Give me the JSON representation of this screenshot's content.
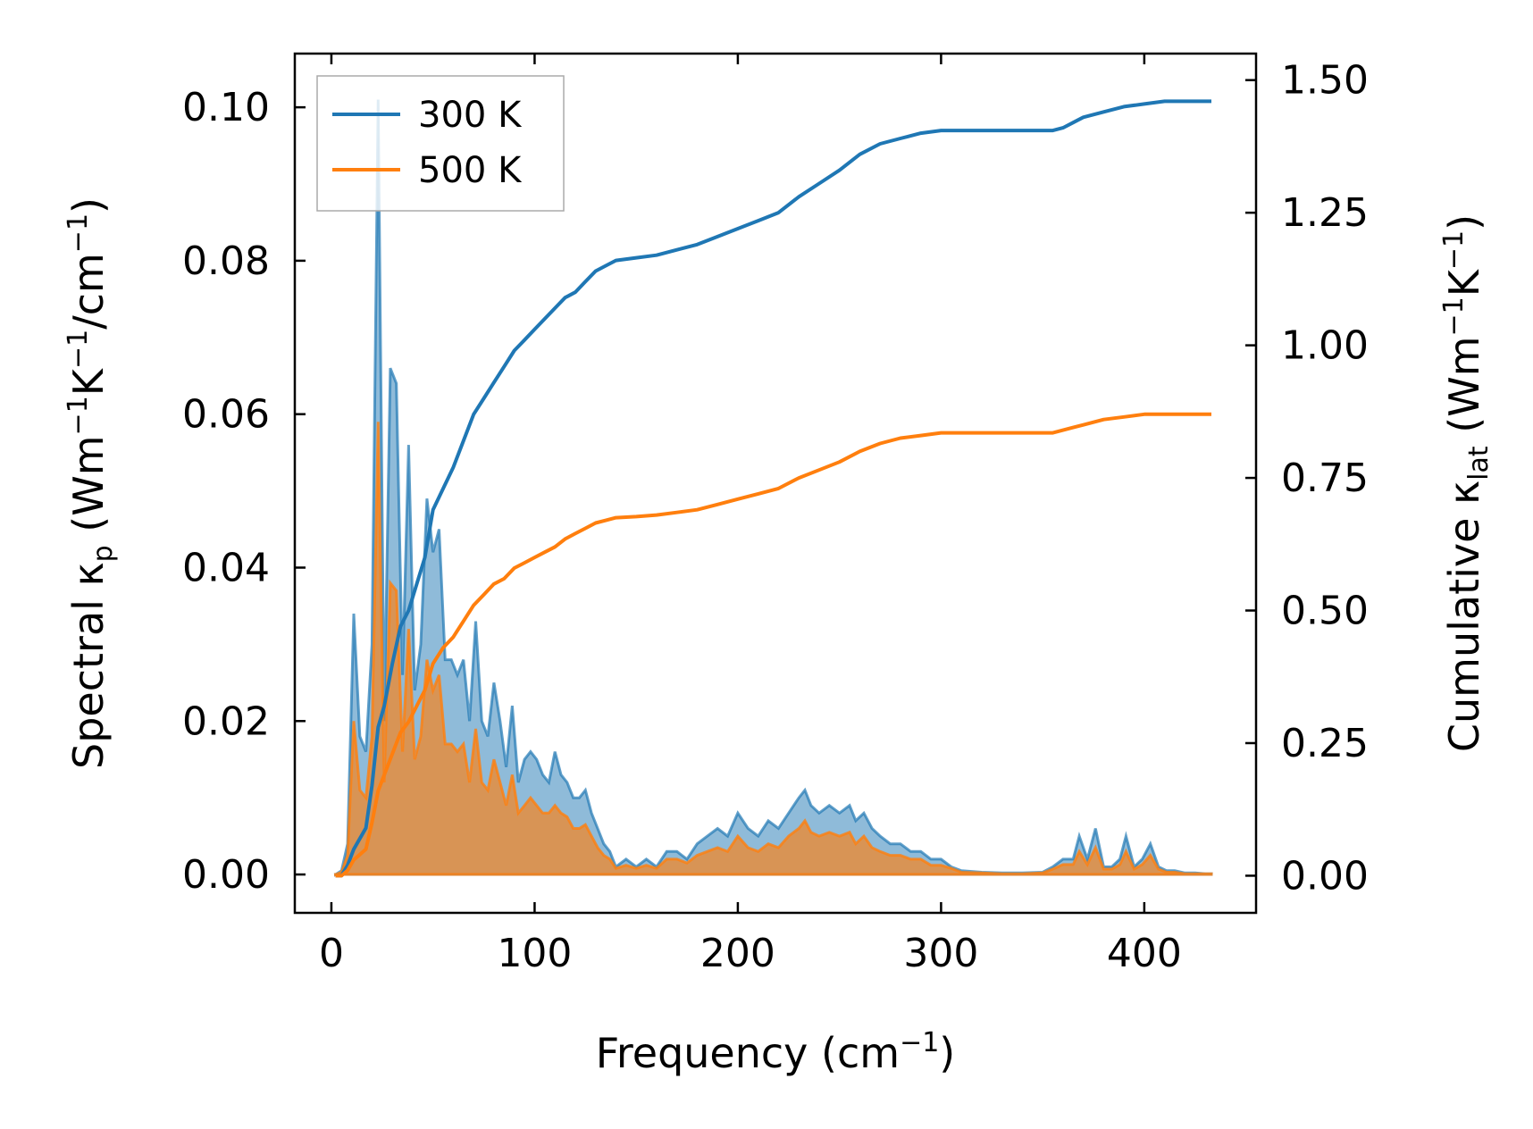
{
  "chart_data": {
    "type": "line",
    "xlabel": "Frequency (cm−1)",
    "ylabel": "Spectral κp (Wm−1K−1/cm−1)",
    "y2label": "Cumulative κlat (Wm−1K−1)",
    "xlim": [
      -18,
      455
    ],
    "ylim": [
      -0.005,
      0.107
    ],
    "y2lim": [
      -0.07,
      1.55
    ],
    "xticks": [
      0,
      100,
      200,
      300,
      400
    ],
    "yticks": [
      0.0,
      0.02,
      0.04,
      0.06,
      0.08,
      0.1
    ],
    "y2ticks": [
      0.0,
      0.25,
      0.5,
      0.75,
      1.0,
      1.25,
      1.5
    ],
    "xtick_labels": [
      "0",
      "100",
      "200",
      "300",
      "400"
    ],
    "ytick_labels": [
      "0.00",
      "0.02",
      "0.04",
      "0.06",
      "0.08",
      "0.10"
    ],
    "y2tick_labels": [
      "0.00",
      "0.25",
      "0.50",
      "0.75",
      "1.00",
      "1.25",
      "1.50"
    ],
    "legend_position": "top-left",
    "grid": false,
    "series": [
      {
        "name": "300 K",
        "color": "#1f77b4",
        "spectral": {
          "x": [
            2,
            5,
            8,
            11,
            14,
            17,
            20,
            23,
            26,
            29,
            32,
            35,
            38,
            41,
            44,
            47,
            50,
            53,
            56,
            59,
            62,
            65,
            68,
            71,
            74,
            77,
            80,
            83,
            86,
            89,
            92,
            95,
            98,
            101,
            104,
            107,
            110,
            113,
            116,
            119,
            122,
            125,
            128,
            131,
            134,
            137,
            140,
            145,
            150,
            155,
            160,
            165,
            170,
            175,
            180,
            185,
            190,
            195,
            200,
            205,
            210,
            215,
            220,
            225,
            230,
            233,
            236,
            240,
            245,
            250,
            255,
            258,
            262,
            266,
            270,
            275,
            280,
            285,
            290,
            295,
            300,
            305,
            310,
            320,
            330,
            340,
            350,
            355,
            360,
            365,
            368,
            372,
            376,
            380,
            384,
            388,
            391,
            395,
            399,
            403,
            407,
            411,
            415,
            420,
            425,
            430,
            433
          ],
          "y": [
            0.0,
            0.0005,
            0.004,
            0.034,
            0.018,
            0.016,
            0.03,
            0.101,
            0.02,
            0.066,
            0.064,
            0.026,
            0.056,
            0.024,
            0.03,
            0.049,
            0.042,
            0.045,
            0.028,
            0.028,
            0.026,
            0.028,
            0.02,
            0.033,
            0.02,
            0.018,
            0.025,
            0.02,
            0.014,
            0.022,
            0.012,
            0.015,
            0.016,
            0.015,
            0.013,
            0.012,
            0.016,
            0.013,
            0.012,
            0.01,
            0.01,
            0.011,
            0.008,
            0.006,
            0.004,
            0.003,
            0.001,
            0.002,
            0.001,
            0.002,
            0.001,
            0.003,
            0.003,
            0.002,
            0.004,
            0.005,
            0.006,
            0.005,
            0.008,
            0.006,
            0.005,
            0.007,
            0.006,
            0.008,
            0.01,
            0.011,
            0.009,
            0.008,
            0.009,
            0.008,
            0.009,
            0.007,
            0.008,
            0.006,
            0.005,
            0.004,
            0.004,
            0.003,
            0.003,
            0.002,
            0.002,
            0.001,
            0.0005,
            0.0003,
            0.0002,
            0.0002,
            0.0003,
            0.001,
            0.002,
            0.002,
            0.005,
            0.002,
            0.006,
            0.001,
            0.001,
            0.002,
            0.005,
            0.001,
            0.002,
            0.004,
            0.001,
            0.0005,
            0.0005,
            0.0002,
            0.0002,
            0.0001,
            0.0001
          ]
        },
        "cumulative": {
          "x": [
            2,
            5,
            8,
            11,
            14,
            17,
            20,
            23,
            26,
            30,
            34,
            38,
            42,
            46,
            50,
            55,
            60,
            65,
            70,
            75,
            80,
            85,
            90,
            95,
            100,
            105,
            110,
            115,
            120,
            125,
            130,
            135,
            140,
            150,
            160,
            170,
            180,
            190,
            200,
            210,
            220,
            230,
            240,
            250,
            260,
            270,
            280,
            290,
            300,
            310,
            320,
            340,
            355,
            360,
            365,
            370,
            380,
            390,
            400,
            410,
            420,
            433
          ],
          "y": [
            0.0,
            0.0,
            0.02,
            0.05,
            0.07,
            0.09,
            0.17,
            0.28,
            0.32,
            0.4,
            0.47,
            0.5,
            0.55,
            0.6,
            0.69,
            0.73,
            0.77,
            0.82,
            0.87,
            0.9,
            0.93,
            0.96,
            0.99,
            1.01,
            1.03,
            1.05,
            1.07,
            1.09,
            1.1,
            1.12,
            1.14,
            1.15,
            1.16,
            1.165,
            1.17,
            1.18,
            1.19,
            1.205,
            1.22,
            1.235,
            1.25,
            1.28,
            1.305,
            1.33,
            1.36,
            1.38,
            1.39,
            1.4,
            1.405,
            1.405,
            1.405,
            1.405,
            1.405,
            1.41,
            1.42,
            1.43,
            1.44,
            1.45,
            1.455,
            1.46,
            1.46,
            1.46
          ]
        }
      },
      {
        "name": "500 K",
        "color": "#ff7f0e",
        "spectral": {
          "x": [
            2,
            5,
            8,
            11,
            14,
            17,
            20,
            23,
            26,
            29,
            32,
            35,
            38,
            41,
            44,
            47,
            50,
            53,
            56,
            59,
            62,
            65,
            68,
            71,
            74,
            77,
            80,
            83,
            86,
            89,
            92,
            95,
            98,
            101,
            104,
            107,
            110,
            113,
            116,
            119,
            122,
            125,
            128,
            131,
            134,
            137,
            140,
            145,
            150,
            155,
            160,
            165,
            170,
            175,
            180,
            185,
            190,
            195,
            200,
            205,
            210,
            215,
            220,
            225,
            230,
            233,
            236,
            240,
            245,
            250,
            255,
            258,
            262,
            266,
            270,
            275,
            280,
            285,
            290,
            295,
            300,
            305,
            310,
            320,
            330,
            340,
            350,
            355,
            360,
            365,
            368,
            372,
            376,
            380,
            384,
            388,
            391,
            395,
            399,
            403,
            407,
            411,
            415,
            420,
            425,
            430,
            433
          ],
          "y": [
            0.0,
            0.0003,
            0.0025,
            0.02,
            0.011,
            0.01,
            0.018,
            0.059,
            0.012,
            0.038,
            0.037,
            0.016,
            0.032,
            0.015,
            0.018,
            0.028,
            0.024,
            0.026,
            0.017,
            0.017,
            0.016,
            0.017,
            0.012,
            0.019,
            0.012,
            0.011,
            0.015,
            0.012,
            0.009,
            0.013,
            0.008,
            0.009,
            0.01,
            0.009,
            0.008,
            0.008,
            0.009,
            0.008,
            0.0075,
            0.006,
            0.006,
            0.0065,
            0.005,
            0.0035,
            0.0025,
            0.002,
            0.0008,
            0.0012,
            0.0008,
            0.0012,
            0.0008,
            0.002,
            0.002,
            0.0015,
            0.0025,
            0.003,
            0.0035,
            0.003,
            0.005,
            0.0035,
            0.003,
            0.004,
            0.0035,
            0.005,
            0.006,
            0.007,
            0.0055,
            0.005,
            0.0055,
            0.005,
            0.0055,
            0.004,
            0.005,
            0.0035,
            0.003,
            0.0025,
            0.0025,
            0.002,
            0.002,
            0.0012,
            0.0012,
            0.0008,
            0.0003,
            0.0002,
            0.0001,
            0.0001,
            0.0002,
            0.0007,
            0.0013,
            0.0013,
            0.003,
            0.0013,
            0.0035,
            0.0007,
            0.0007,
            0.0013,
            0.003,
            0.0007,
            0.0013,
            0.0025,
            0.0007,
            0.0003,
            0.0003,
            0.0001,
            0.0001,
            0.0001,
            0.0001
          ]
        },
        "cumulative": {
          "x": [
            2,
            5,
            8,
            11,
            14,
            17,
            20,
            23,
            26,
            30,
            34,
            38,
            42,
            46,
            50,
            55,
            60,
            65,
            70,
            75,
            80,
            85,
            90,
            95,
            100,
            105,
            110,
            115,
            120,
            125,
            130,
            135,
            140,
            150,
            160,
            170,
            180,
            190,
            200,
            210,
            220,
            230,
            240,
            250,
            260,
            270,
            280,
            290,
            300,
            310,
            320,
            340,
            355,
            360,
            365,
            370,
            380,
            390,
            400,
            410,
            420,
            433
          ],
          "y": [
            0.0,
            0.0,
            0.01,
            0.03,
            0.04,
            0.05,
            0.1,
            0.16,
            0.19,
            0.23,
            0.27,
            0.29,
            0.32,
            0.35,
            0.4,
            0.43,
            0.45,
            0.48,
            0.51,
            0.53,
            0.55,
            0.56,
            0.58,
            0.59,
            0.6,
            0.61,
            0.62,
            0.635,
            0.645,
            0.655,
            0.665,
            0.67,
            0.675,
            0.677,
            0.68,
            0.685,
            0.69,
            0.7,
            0.71,
            0.72,
            0.73,
            0.75,
            0.765,
            0.78,
            0.8,
            0.815,
            0.825,
            0.83,
            0.835,
            0.835,
            0.835,
            0.835,
            0.835,
            0.84,
            0.845,
            0.85,
            0.86,
            0.865,
            0.87,
            0.87,
            0.87,
            0.87
          ]
        }
      }
    ]
  }
}
